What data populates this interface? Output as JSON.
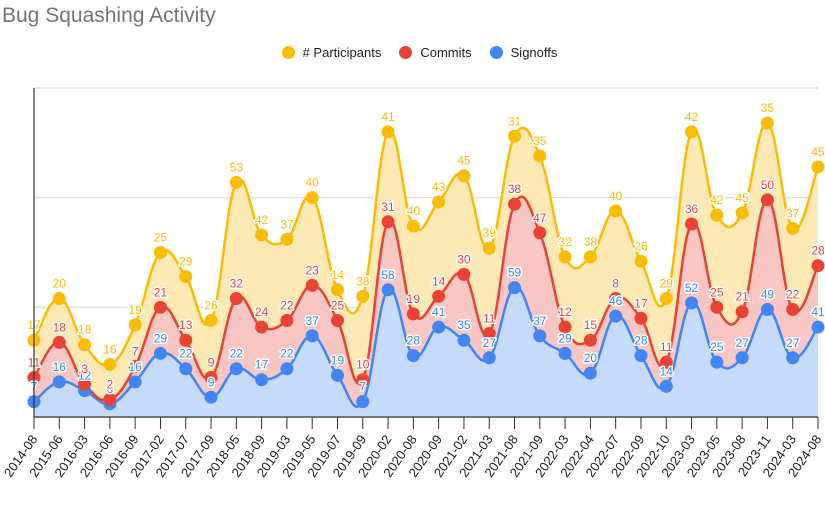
{
  "chart_data": {
    "type": "area",
    "stacked": true,
    "title": "Bug Squashing Activity",
    "xlabel": "",
    "ylabel": "",
    "ylim": [
      0,
      150
    ],
    "grid": true,
    "gridlines": [
      50,
      100,
      150
    ],
    "legend_position": "top-center",
    "categories": [
      "2014-08",
      "2015-06",
      "2016-03",
      "2016-06",
      "2016-09",
      "2017-02",
      "2017-07",
      "2017-09",
      "2018-05",
      "2018-09",
      "2019-03",
      "2019-05",
      "2019-07",
      "2019-09",
      "2020-02",
      "2020-08",
      "2020-09",
      "2021-02",
      "2021-03",
      "2021-08",
      "2021-09",
      "2022-03",
      "2022-04",
      "2022-07",
      "2022-09",
      "2022-10",
      "2023-03",
      "2023-05",
      "2023-08",
      "2023-11",
      "2024-03",
      "2024-08"
    ],
    "series": [
      {
        "name": "Signoffs",
        "color": "#4285F4",
        "fill": "#C6DAFC",
        "values": [
          7,
          16,
          12,
          6,
          16,
          29,
          22,
          9,
          22,
          17,
          22,
          37,
          19,
          7,
          58,
          28,
          41,
          35,
          27,
          59,
          37,
          29,
          20,
          46,
          28,
          14,
          52,
          25,
          27,
          49,
          27,
          41
        ]
      },
      {
        "name": "Commits",
        "color": "#EA4335",
        "fill": "#F8C7C3",
        "values": [
          11,
          18,
          3,
          2,
          7,
          21,
          13,
          9,
          32,
          24,
          22,
          23,
          25,
          10,
          31,
          19,
          14,
          30,
          11,
          38,
          47,
          12,
          15,
          8,
          17,
          11,
          36,
          25,
          21,
          50,
          22,
          28
        ]
      },
      {
        "name": "# Participants",
        "color": "#FBBC04",
        "fill": "#FDE9B3",
        "values": [
          17,
          20,
          18,
          16,
          19,
          25,
          29,
          26,
          53,
          42,
          37,
          40,
          14,
          38,
          41,
          40,
          43,
          45,
          39,
          31,
          35,
          32,
          38,
          40,
          26,
          29,
          42,
          42,
          45,
          35,
          37,
          45
        ]
      }
    ]
  },
  "legend": [
    {
      "label": "# Participants",
      "color": "#FBBC04"
    },
    {
      "label": "Commits",
      "color": "#EA4335"
    },
    {
      "label": "Signoffs",
      "color": "#4285F4"
    }
  ]
}
